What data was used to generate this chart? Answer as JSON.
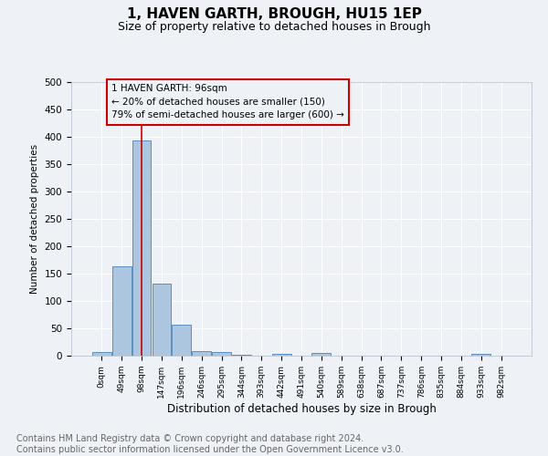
{
  "title": "1, HAVEN GARTH, BROUGH, HU15 1EP",
  "subtitle": "Size of property relative to detached houses in Brough",
  "xlabel": "Distribution of detached houses by size in Brough",
  "ylabel": "Number of detached properties",
  "bar_labels": [
    "0sqm",
    "49sqm",
    "98sqm",
    "147sqm",
    "196sqm",
    "246sqm",
    "295sqm",
    "344sqm",
    "393sqm",
    "442sqm",
    "491sqm",
    "540sqm",
    "589sqm",
    "638sqm",
    "687sqm",
    "737sqm",
    "786sqm",
    "835sqm",
    "884sqm",
    "933sqm",
    "982sqm"
  ],
  "bar_values": [
    7,
    163,
    393,
    131,
    56,
    8,
    7,
    2,
    0,
    3,
    0,
    5,
    0,
    0,
    0,
    0,
    0,
    0,
    0,
    3,
    0
  ],
  "bar_color": "#adc6e0",
  "bar_edge_color": "#5a8fc0",
  "ylim": [
    0,
    500
  ],
  "yticks": [
    0,
    50,
    100,
    150,
    200,
    250,
    300,
    350,
    400,
    450,
    500
  ],
  "vline_x": 2,
  "vline_color": "#cc0000",
  "annotation_text": "1 HAVEN GARTH: 96sqm\n← 20% of detached houses are smaller (150)\n79% of semi-detached houses are larger (600) →",
  "annotation_box_color": "#cc0000",
  "footer_line1": "Contains HM Land Registry data © Crown copyright and database right 2024.",
  "footer_line2": "Contains public sector information licensed under the Open Government Licence v3.0.",
  "background_color": "#eef2f7",
  "grid_color": "#ffffff",
  "title_fontsize": 11,
  "subtitle_fontsize": 9,
  "annotation_fontsize": 7.5,
  "footer_fontsize": 7
}
